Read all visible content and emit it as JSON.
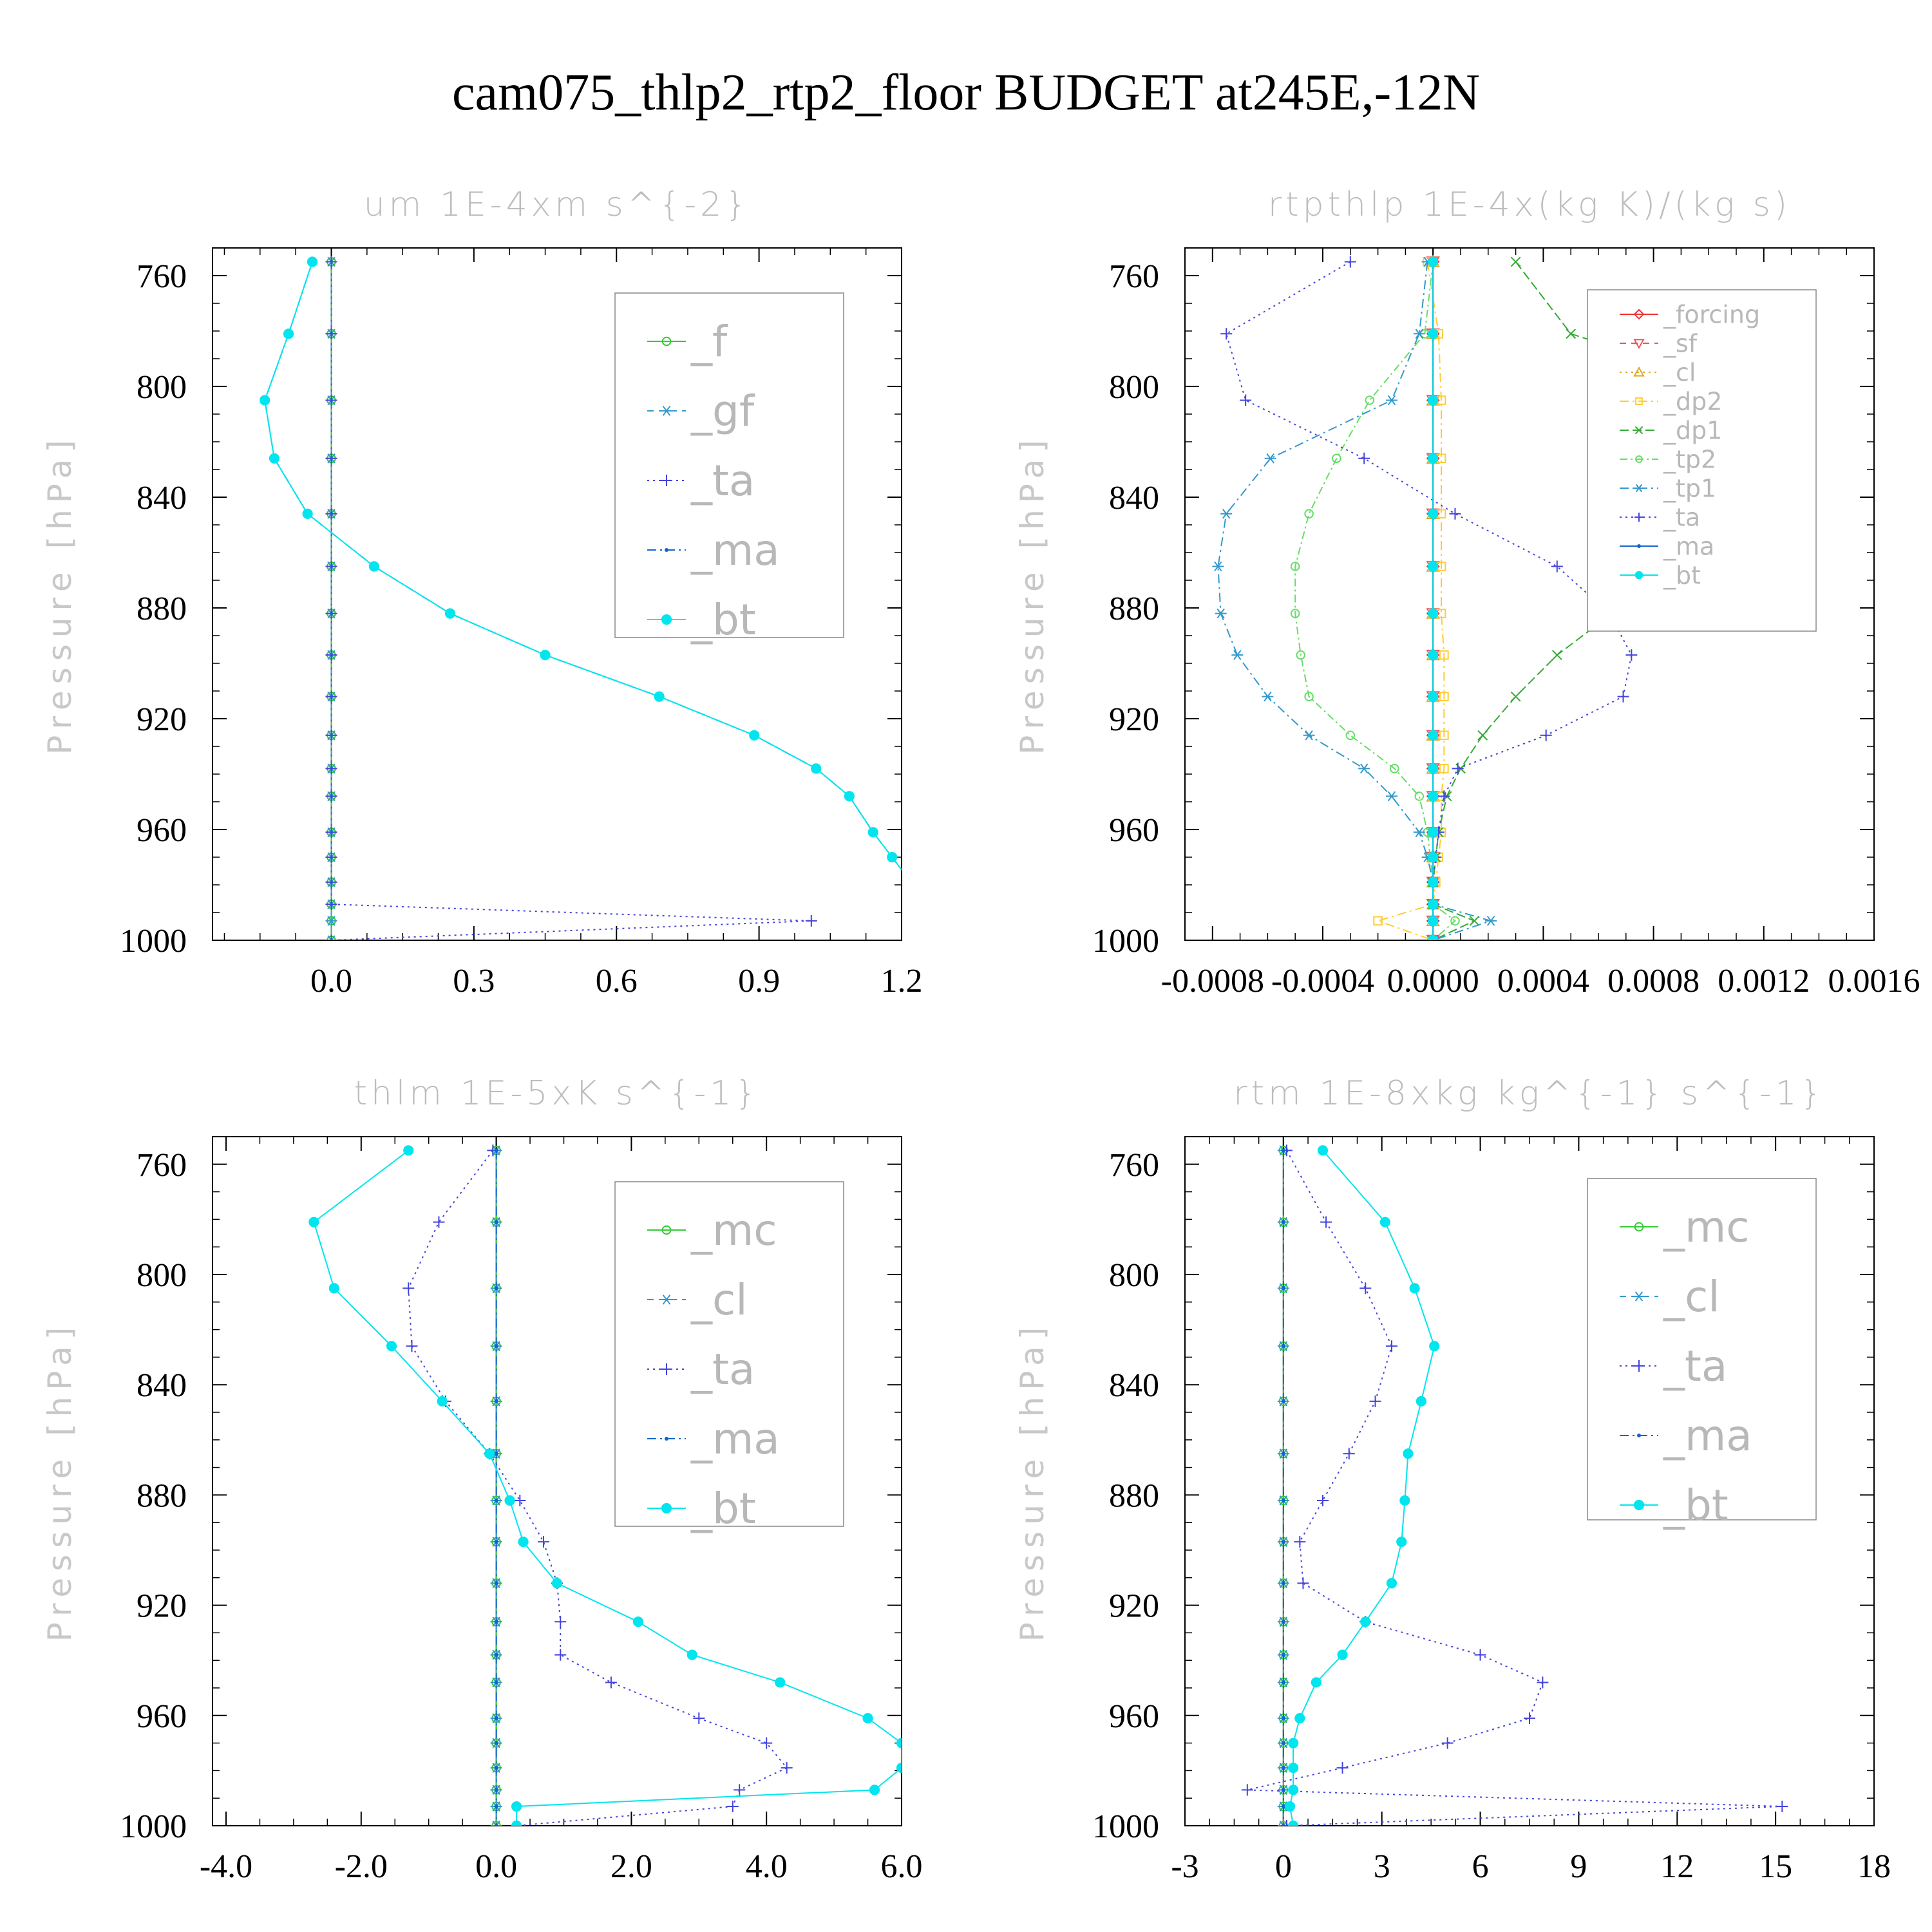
{
  "figure_title": "cam075_thlp2_rtp2_floor  BUDGET at245E,-12N",
  "chart_data": [
    {
      "type": "line",
      "title": "um   1E-4xm s^{-2}",
      "ylabel": "Pressure [hPa]",
      "xlim": [
        -0.25,
        1.2
      ],
      "ylim": [
        1000,
        750
      ],
      "xticks": [
        "0.0",
        "0.3",
        "0.6",
        "0.9",
        "1.2"
      ],
      "yticks": [
        "760",
        "800",
        "840",
        "880",
        "920",
        "960",
        "1000"
      ],
      "legend_position": "top-right",
      "p": [
        755,
        781,
        805,
        826,
        846,
        865,
        882,
        897,
        912,
        926,
        938,
        948,
        961,
        970,
        979,
        987,
        993,
        1000
      ],
      "series": [
        {
          "name": "_f",
          "color": "#33cc33",
          "marker": "circle-open",
          "dash": "none",
          "x": [
            0,
            0,
            0,
            0,
            0,
            0,
            0,
            0,
            0,
            0,
            0,
            0,
            0,
            0,
            0,
            0,
            0,
            0
          ]
        },
        {
          "name": "_gf",
          "color": "#3399cc",
          "marker": "asterisk",
          "dash": "10,8",
          "x": [
            0,
            0,
            0,
            0,
            0,
            0,
            0,
            0,
            0,
            0,
            0,
            0,
            0,
            0,
            0,
            0,
            0,
            0
          ]
        },
        {
          "name": "_ta",
          "color": "#4444dd",
          "marker": "plus",
          "dash": "3,6",
          "x": [
            0,
            0,
            0,
            0,
            0,
            0,
            0,
            0,
            0,
            0,
            0,
            0,
            0,
            0,
            0,
            0,
            1.01,
            0
          ]
        },
        {
          "name": "_ma",
          "color": "#1166cc",
          "marker": "dot",
          "dash": "14,6,3,6",
          "x": [
            -0.04,
            -0.09,
            -0.14,
            -0.12,
            -0.05,
            0.09,
            0.25,
            0.45,
            0.69,
            0.89,
            1.02,
            1.09,
            1.14,
            1.18,
            1.22,
            1.25,
            1.27,
            1.27
          ]
        },
        {
          "name": "_bt",
          "color": "#00e5ee",
          "marker": "filled-circle",
          "dash": "none",
          "x": [
            -0.04,
            -0.09,
            -0.14,
            -0.12,
            -0.05,
            0.09,
            0.25,
            0.45,
            0.69,
            0.89,
            1.02,
            1.09,
            1.14,
            1.18,
            1.22,
            1.25,
            1.27,
            1.27
          ]
        }
      ]
    },
    {
      "type": "line",
      "title": "rtpthlp   1E-4x(kg K)/(kg s)",
      "ylabel": "Pressure [hPa]",
      "xlim": [
        -0.0009,
        0.0016
      ],
      "ylim": [
        1000,
        750
      ],
      "xticks": [
        "-0.0008",
        "-0.0004",
        "0.0000",
        "0.0004",
        "0.0008",
        "0.0012",
        "0.0016"
      ],
      "yticks": [
        "760",
        "800",
        "840",
        "880",
        "920",
        "960",
        "1000"
      ],
      "legend_position": "top-right",
      "p": [
        755,
        781,
        805,
        826,
        846,
        865,
        882,
        897,
        912,
        926,
        938,
        948,
        961,
        970,
        979,
        987,
        993,
        1000
      ],
      "series": [
        {
          "name": "_forcing",
          "color": "#ee3333",
          "marker": "diamond",
          "dash": "none",
          "x": [
            0,
            0,
            0,
            0,
            0,
            0,
            0,
            0,
            0,
            0,
            0,
            0,
            0,
            0,
            0,
            0,
            0,
            0
          ]
        },
        {
          "name": "_sf",
          "color": "#ee5555",
          "marker": "triangle-down",
          "dash": "10,8",
          "x": [
            0,
            0,
            0,
            0,
            0,
            0,
            0,
            0,
            0,
            0,
            0,
            0,
            0,
            0,
            0,
            0,
            0,
            0
          ]
        },
        {
          "name": "_cl",
          "color": "#ddaa22",
          "marker": "triangle-up",
          "dash": "3,6",
          "x": [
            0,
            0,
            0,
            0,
            0,
            0,
            0,
            0,
            0,
            0,
            0,
            0,
            0,
            0,
            0,
            0,
            0,
            0
          ]
        },
        {
          "name": "_dp2",
          "color": "#ffcc33",
          "marker": "square",
          "dash": "14,6,3,6",
          "x": [
            -2e-05,
            2e-05,
            3e-05,
            3e-05,
            3e-05,
            3e-05,
            3e-05,
            4e-05,
            4e-05,
            4e-05,
            4e-05,
            3e-05,
            3e-05,
            2e-05,
            1e-05,
            0,
            -0.0002,
            0
          ]
        },
        {
          "name": "_dp1",
          "color": "#33aa33",
          "marker": "x",
          "dash": "14,6",
          "x": [
            0.0003,
            0.0005,
            0.00125,
            0.00125,
            0.0011,
            0.0009,
            0.00065,
            0.00045,
            0.0003,
            0.00018,
            0.0001,
            5e-05,
            2e-05,
            1e-05,
            0,
            0,
            0.00015,
            0
          ]
        },
        {
          "name": "_tp2",
          "color": "#66dd66",
          "marker": "circle-open",
          "dash": "12,5,3,5",
          "x": [
            0,
            -3e-05,
            -0.00023,
            -0.00035,
            -0.00045,
            -0.0005,
            -0.0005,
            -0.00048,
            -0.00045,
            -0.0003,
            -0.00014,
            -5e-05,
            -2e-05,
            -1e-05,
            0,
            0,
            8e-05,
            0
          ]
        },
        {
          "name": "_tp1",
          "color": "#3399cc",
          "marker": "asterisk",
          "dash": "14,6,3,6",
          "x": [
            -2e-05,
            -5e-05,
            -0.00015,
            -0.00059,
            -0.00075,
            -0.00078,
            -0.00077,
            -0.00071,
            -0.0006,
            -0.00045,
            -0.00025,
            -0.00015,
            -5e-05,
            -2e-05,
            0,
            0,
            0.00021,
            0
          ]
        },
        {
          "name": "_ta",
          "color": "#4444dd",
          "marker": "plus",
          "dash": "3,6",
          "x": [
            -0.0003,
            -0.00075,
            -0.00068,
            -0.00025,
            8e-05,
            0.00045,
            0.00064,
            0.00072,
            0.00069,
            0.00041,
            9e-05,
            4e-05,
            2e-05,
            1e-05,
            0,
            0,
            0,
            0
          ]
        },
        {
          "name": "_ma",
          "color": "#1166cc",
          "marker": "dot",
          "dash": "none",
          "x": [
            0,
            0,
            0,
            0,
            0,
            0,
            0,
            0,
            0,
            0,
            0,
            0,
            0,
            0,
            0,
            0,
            0,
            0
          ]
        },
        {
          "name": "_bt",
          "color": "#00e5ee",
          "marker": "filled-circle",
          "dash": "none",
          "x": [
            0,
            0,
            0,
            0,
            0,
            0,
            0,
            0,
            0,
            0,
            0,
            0,
            0,
            0,
            0,
            0,
            0,
            0
          ]
        }
      ]
    },
    {
      "type": "line",
      "title": "thlm   1E-5xK s^{-1}",
      "ylabel": "Pressure [hPa]",
      "xlim": [
        -4.2,
        6.0
      ],
      "ylim": [
        1000,
        750
      ],
      "xticks": [
        "-4.0",
        "-2.0",
        "0.0",
        "2.0",
        "4.0",
        "6.0"
      ],
      "yticks": [
        "760",
        "800",
        "840",
        "880",
        "920",
        "960",
        "1000"
      ],
      "legend_position": "top-right",
      "p": [
        755,
        781,
        805,
        826,
        846,
        865,
        882,
        897,
        912,
        926,
        938,
        948,
        961,
        970,
        979,
        987,
        993,
        1000
      ],
      "series": [
        {
          "name": "_mc",
          "color": "#33cc33",
          "marker": "circle-open",
          "dash": "none",
          "x": [
            0,
            0,
            0,
            0,
            0,
            0,
            0,
            0,
            0,
            0,
            0,
            0,
            0,
            0,
            0,
            0,
            0,
            0
          ]
        },
        {
          "name": "_cl",
          "color": "#3399cc",
          "marker": "asterisk",
          "dash": "10,8",
          "x": [
            0,
            0,
            0,
            0,
            0,
            0,
            0,
            0,
            0,
            0,
            0,
            0,
            0,
            0,
            0,
            0,
            0,
            0
          ]
        },
        {
          "name": "_ta",
          "color": "#4444dd",
          "marker": "plus",
          "dash": "3,6",
          "x": [
            -0.05,
            -0.85,
            -1.3,
            -1.25,
            -0.75,
            -0.1,
            0.35,
            0.7,
            0.9,
            0.95,
            0.95,
            1.7,
            3.0,
            4.0,
            4.3,
            3.6,
            3.5,
            0.3
          ]
        },
        {
          "name": "_ma",
          "color": "#1166cc",
          "marker": "dot",
          "dash": "14,6,3,6",
          "x": [
            0,
            0,
            0,
            0,
            0,
            0,
            0,
            0,
            0,
            0,
            0,
            0,
            0,
            0,
            0,
            0,
            0,
            0
          ]
        },
        {
          "name": "_bt",
          "color": "#00e5ee",
          "marker": "filled-circle",
          "dash": "none",
          "x": [
            -1.3,
            -2.7,
            -2.4,
            -1.55,
            -0.8,
            -0.1,
            0.2,
            0.4,
            0.9,
            2.1,
            2.9,
            4.2,
            5.5,
            6.0,
            6.0,
            5.6,
            0.3,
            0.3
          ]
        }
      ]
    },
    {
      "type": "line",
      "title": "rtm   1E-8xkg kg^{-1} s^{-1}",
      "ylabel": "Pressure [hPa]",
      "xlim": [
        -3,
        18
      ],
      "ylim": [
        1000,
        750
      ],
      "xticks": [
        "-3",
        "0",
        "3",
        "6",
        "9",
        "12",
        "15",
        "18"
      ],
      "yticks": [
        "760",
        "800",
        "840",
        "880",
        "920",
        "960",
        "1000"
      ],
      "legend_position": "top-right",
      "p": [
        755,
        781,
        805,
        826,
        846,
        865,
        882,
        897,
        912,
        926,
        938,
        948,
        961,
        970,
        979,
        987,
        993,
        1000
      ],
      "series": [
        {
          "name": "_mc",
          "color": "#33cc33",
          "marker": "circle-open",
          "dash": "none",
          "x": [
            0,
            0,
            0,
            0,
            0,
            0,
            0,
            0,
            0,
            0,
            0,
            0,
            0,
            0,
            0,
            0,
            0,
            0
          ]
        },
        {
          "name": "_cl",
          "color": "#3399cc",
          "marker": "asterisk",
          "dash": "10,8",
          "x": [
            0,
            0,
            0,
            0,
            0,
            0,
            0,
            0,
            0,
            0,
            0,
            0,
            0,
            0,
            0,
            0,
            0,
            0
          ]
        },
        {
          "name": "_ta",
          "color": "#4444dd",
          "marker": "plus",
          "dash": "3,6",
          "x": [
            0.1,
            1.3,
            2.5,
            3.3,
            2.8,
            2.0,
            1.2,
            0.5,
            0.6,
            2.5,
            6.0,
            7.9,
            7.5,
            5.0,
            1.8,
            -1.1,
            15.2,
            0.1
          ]
        },
        {
          "name": "_ma",
          "color": "#1166cc",
          "marker": "dot",
          "dash": "14,6,3,6",
          "x": [
            0,
            0,
            0,
            0,
            0,
            0,
            0,
            0,
            0,
            0,
            0,
            0,
            0,
            0,
            0,
            0,
            0,
            0
          ]
        },
        {
          "name": "_bt",
          "color": "#00e5ee",
          "marker": "filled-circle",
          "dash": "none",
          "x": [
            1.2,
            3.1,
            4.0,
            4.6,
            4.2,
            3.8,
            3.7,
            3.6,
            3.3,
            2.5,
            1.8,
            1.0,
            0.5,
            0.3,
            0.3,
            0.3,
            0.2,
            0.3
          ]
        }
      ]
    }
  ]
}
